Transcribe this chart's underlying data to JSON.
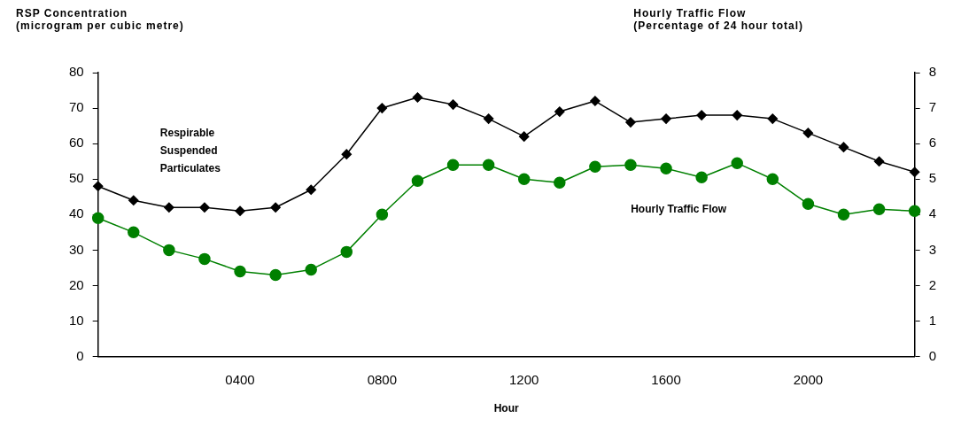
{
  "chart_data": {
    "type": "line",
    "xlabel": "Hour",
    "ylabel": "RSP Concentration\n(microgram per cubic metre)",
    "y2label": "Hourly Traffic Flow\n(Percentage of 24 hour total)",
    "categories": [
      null,
      null,
      null,
      null,
      "0400",
      null,
      null,
      null,
      "0800",
      null,
      null,
      null,
      "1200",
      null,
      null,
      null,
      "1600",
      null,
      null,
      null,
      "2000",
      null,
      null,
      null
    ],
    "ylim": [
      0,
      80
    ],
    "yticks": [
      0,
      10,
      20,
      30,
      40,
      50,
      60,
      70,
      80
    ],
    "y2lim": [
      0,
      8
    ],
    "y2ticks": [
      0,
      1,
      2,
      3,
      4,
      5,
      6,
      7,
      8
    ],
    "series": [
      {
        "name": "Respirable Suspended Particulates",
        "color": "#000000",
        "marker": "diamond",
        "values": [
          48,
          44,
          42,
          42,
          41,
          42,
          47,
          57,
          70,
          73,
          71,
          67,
          62,
          69,
          72,
          66,
          67,
          68,
          68,
          67,
          63,
          59,
          55,
          52
        ]
      },
      {
        "name": "Hourly Traffic Flow",
        "color": "#008000",
        "marker": "circle",
        "axis": "y2",
        "values": [
          3.9,
          3.5,
          3.0,
          2.75,
          2.4,
          2.3,
          2.45,
          2.95,
          4.0,
          4.95,
          5.4,
          5.4,
          5.0,
          4.9,
          5.35,
          5.4,
          5.3,
          5.05,
          5.45,
          5.0,
          4.3,
          4.0,
          4.15,
          4.1
        ]
      }
    ],
    "grid": false,
    "legend": false
  }
}
